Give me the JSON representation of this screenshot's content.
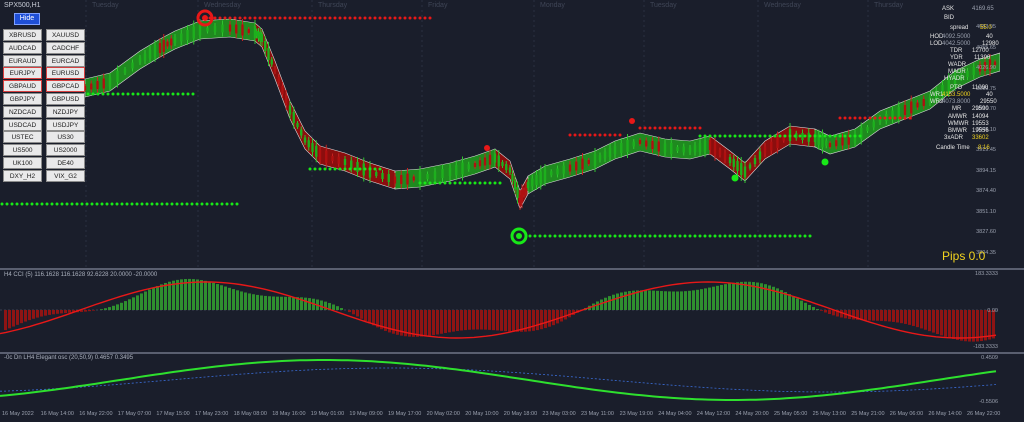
{
  "chart_title": "SPX500,H1",
  "hide_button": "Hide",
  "symbols": [
    "XBRUSD",
    "XAUUSD",
    "AUDCAD",
    "CADCHF",
    "EURAUD",
    "EURCAD",
    "EURJPY",
    "EURUSD",
    "GBPAUD",
    "GBPCAD",
    "GBPJPY",
    "GBPUSD",
    "NZDCAD",
    "NZDJPY",
    "USDCAD",
    "USDJPY",
    "USTEC",
    "US30",
    "US500",
    "US2000",
    "UK100",
    "DE40",
    "DXY_H2",
    "VIX_G2"
  ],
  "day_labels": [
    "Tuesday",
    "Wednesday",
    "Thursday",
    "Friday",
    "Monday",
    "Tuesday",
    "Wednesday",
    "Thursday"
  ],
  "price_axis": [
    "4083.05",
    "4055.65",
    "4026.90",
    "3999.75",
    "3966.70",
    "3945.10",
    "3919.45",
    "3894.15",
    "3874.40",
    "3851.10",
    "3827.60",
    "3804.35"
  ],
  "info": {
    "ask_label": "ASK",
    "ask_value": "4169.65",
    "bid_label": "BID",
    "spread_label": "spread",
    "spread_value": "55.0",
    "hod_label": "HOD",
    "hod_value": "4092.5000",
    "hod_num": "40",
    "lod_label": "LOD",
    "lod_value": "4042.5000",
    "lod_num": "12980",
    "tdr_label": "TDR",
    "tdr_value": "12700",
    "ydr_label": "YDR",
    "ydr_value": "11390",
    "wadr_label": "WADR",
    "madr_label": "MADR",
    "hyadr_label": "HYADR",
    "pto_label": "PTO",
    "pto_value": "11090",
    "wr1_label": "WR1",
    "wr1_value": "4153.5000",
    "wr1_num": "40",
    "wr2_label": "WR2",
    "wr2_value": "4073.8000",
    "wr2_num": "29550",
    "mr_label": "MR",
    "mr_num": "29590",
    "amwr_label": "AMWR",
    "amwr_num": "14094",
    "wmwr_label": "WMWR",
    "wmwr_num": "19553",
    "bmwr_label": "BMWR",
    "bmwr_num": "19556",
    "adr_label": "3xADR",
    "adr_num": "33602",
    "candle_label": "Candle Time",
    "candle_value": "8:16"
  },
  "pips_label": "Pips 0.0",
  "cci": {
    "title": "H4 CCI (5) 116.1628 116.1628 92.6228 20.0000 -20.0000",
    "ticks": [
      "183.3333",
      "0.00",
      "-183.3333"
    ]
  },
  "ind": {
    "title": "-0c Dn LH4 Elegant osc (20,50,9) 0.4657 0.3495",
    "ticks": [
      "0.4509",
      "-0.5506"
    ]
  },
  "time_labels": [
    "16 May 2022",
    "16 May 14:00",
    "16 May 22:00",
    "17 May 07:00",
    "17 May 15:00",
    "17 May 23:00",
    "18 May 08:00",
    "18 May 16:00",
    "19 May 01:00",
    "19 May 09:00",
    "19 May 17:00",
    "20 May 02:00",
    "20 May 10:00",
    "20 May 18:00",
    "23 May 03:00",
    "23 May 11:00",
    "23 May 19:00",
    "24 May 04:00",
    "24 May 12:00",
    "24 May 20:00",
    "25 May 05:00",
    "25 May 13:00",
    "25 May 21:00",
    "26 May 06:00",
    "26 May 14:00",
    "26 May 22:00"
  ],
  "colors": {
    "background": "#1a1e2b",
    "bull_cloud": "#1f8a1f",
    "bear_cloud": "#8b0e0e",
    "green_dots": "#18e818",
    "red_dots": "#e81818",
    "accent_yellow": "#f2d31f"
  }
}
